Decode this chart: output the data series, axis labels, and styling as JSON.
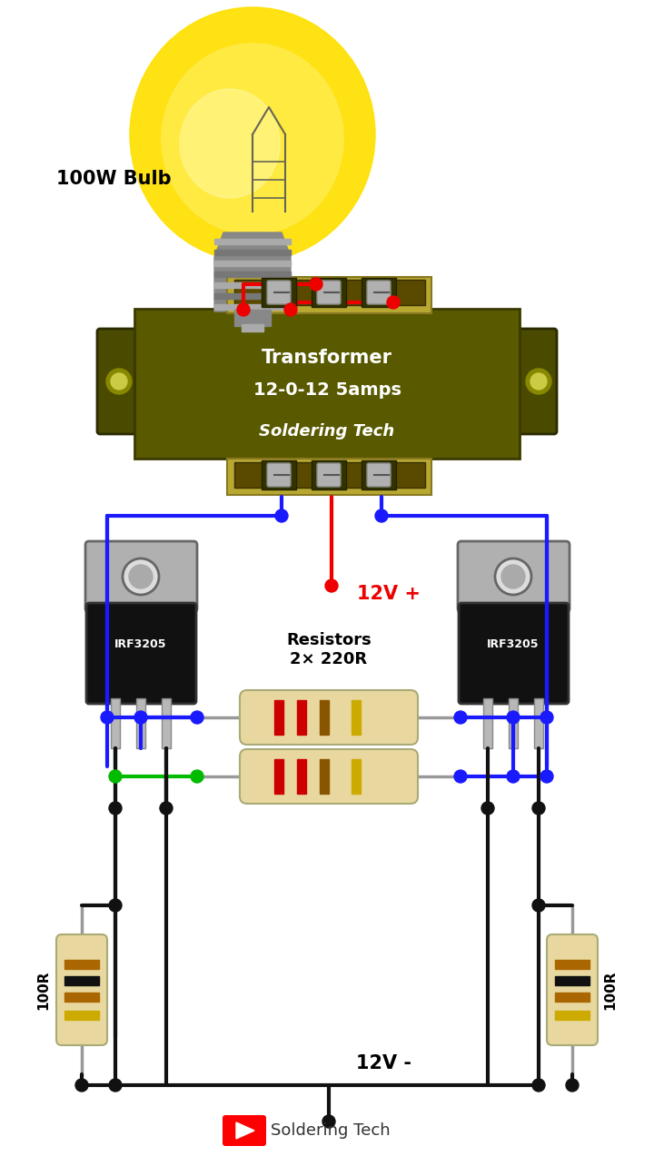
{
  "bg_color": "#ffffff",
  "bulb_label": "100W Bulb",
  "transformer_label1": "Transformer",
  "transformer_label2": "12-0-12 5amps",
  "transformer_label3": "Soldering Tech",
  "irf_left_label": "IRF3205",
  "irf_right_label": "IRF3205",
  "res_label": "Resistors\n2× 220R",
  "res_100r_label": "100R",
  "v_plus_label": "12V +",
  "v_minus_label": "12V -",
  "footer_label": "Soldering Tech",
  "wire_blue": "#1a1aff",
  "wire_red": "#ee0000",
  "wire_green": "#00bb00",
  "wire_black": "#111111",
  "trans_body_color": "#5c5c00",
  "trans_top_color": "#9e9e00",
  "trans_ear_color": "#4a4a00",
  "terminal_dark": "#2a2a00",
  "terminal_silver": "#aaaaaa",
  "irf_tab_color": "#aaaaaa",
  "irf_body_color": "#111111",
  "res_body_color": "#e8d8a0",
  "res_lead_color": "#999999"
}
